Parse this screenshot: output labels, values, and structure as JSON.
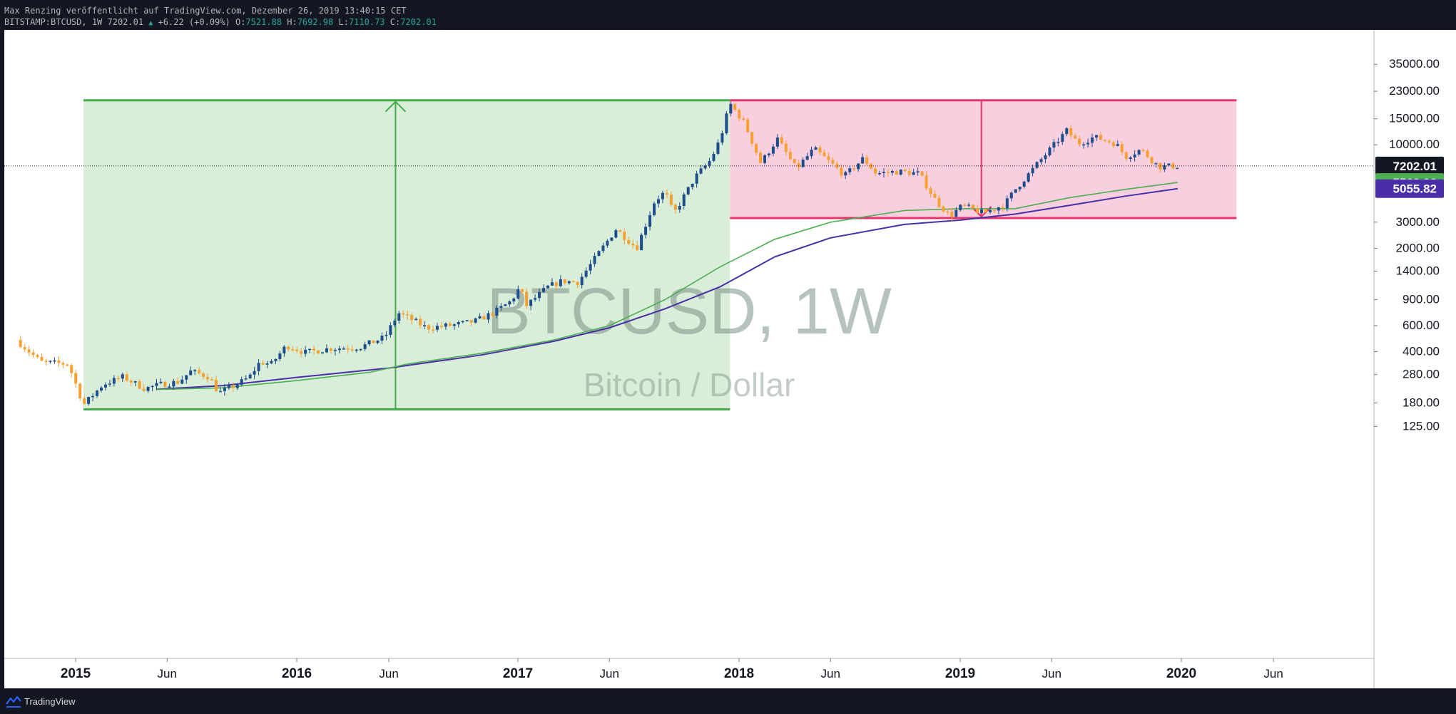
{
  "header": {
    "publisher_line": "Max Renzing veröffentlicht auf TradingView.com, Dezember 26, 2019 13:40:15 CET",
    "symbol_line": "BITSTAMP:BTCUSD, 1W 7202.01",
    "change": "+6.22 (+0.09%)",
    "o_label": "O:",
    "o_value": "7521.88",
    "h_label": "H:",
    "h_value": "7692.98",
    "l_label": "L:",
    "l_value": "7110.73",
    "c_label": "C:",
    "c_value": "7202.01"
  },
  "watermark": {
    "symbol": "BTCUSD, 1W",
    "name": "Bitcoin / Dollar"
  },
  "footer": {
    "brand": "TradingView",
    "logo_icon": "tradingview-logo-icon"
  },
  "colors": {
    "up": "#1e4d8c",
    "down": "#f5a030",
    "ma_green": "#4caf50",
    "ma_purple": "#4a2ea8",
    "range_fill": "#d9eed8",
    "range_border": "#43ab4a",
    "drop_fill": "#f8cfdf",
    "drop_border": "#e8336d"
  },
  "chart_data": {
    "type": "candlestick",
    "scale": "log",
    "ylim": [
      95,
      45000
    ],
    "y_ticks": [
      "35000.00",
      "23000.00",
      "15000.00",
      "10000.00",
      "3000.00",
      "2000.00",
      "1400.00",
      "900.00",
      "600.00",
      "400.00",
      "280.00",
      "180.00",
      "125.00"
    ],
    "y_tick_values": [
      35000,
      23000,
      15000,
      10000,
      3000,
      2000,
      1400,
      900,
      600,
      400,
      280,
      180,
      125
    ],
    "x_ticks": [
      "2015",
      "Jun",
      "2016",
      "Jun",
      "2017",
      "Jun",
      "2018",
      "Jun",
      "2019",
      "Jun",
      "2020",
      "Jun"
    ],
    "x_tick_dates": [
      "2015-01-01",
      "2015-06-01",
      "2016-01-01",
      "2016-06-01",
      "2017-01-01",
      "2017-06-01",
      "2018-01-01",
      "2018-06-01",
      "2019-01-01",
      "2019-06-01",
      "2020-01-01",
      "2020-06-01"
    ],
    "price_labels": [
      {
        "text": "7202.01",
        "value": 7202.01,
        "role": "last_price"
      },
      {
        "text": "5562.26",
        "value": 5562.26,
        "role": "ma_green"
      },
      {
        "text": "5055.82",
        "value": 5055.82,
        "role": "ma_purple"
      }
    ],
    "price_path": [
      [
        "2014-09-25",
        480
      ],
      [
        "2014-11-05",
        340
      ],
      [
        "2014-12-20",
        330
      ],
      [
        "2015-01-14",
        175
      ],
      [
        "2015-02-15",
        240
      ],
      [
        "2015-03-20",
        270
      ],
      [
        "2015-04-25",
        225
      ],
      [
        "2015-05-20",
        240
      ],
      [
        "2015-06-20",
        250
      ],
      [
        "2015-07-10",
        295
      ],
      [
        "2015-08-10",
        270
      ],
      [
        "2015-08-25",
        210
      ],
      [
        "2015-09-20",
        235
      ],
      [
        "2015-10-15",
        270
      ],
      [
        "2015-11-01",
        340
      ],
      [
        "2015-11-20",
        330
      ],
      [
        "2015-12-15",
        440
      ],
      [
        "2016-01-15",
        395
      ],
      [
        "2016-02-25",
        420
      ],
      [
        "2016-04-15",
        430
      ],
      [
        "2016-05-25",
        500
      ],
      [
        "2016-06-17",
        730
      ],
      [
        "2016-07-10",
        655
      ],
      [
        "2016-08-02",
        580
      ],
      [
        "2016-09-15",
        605
      ],
      [
        "2016-10-20",
        640
      ],
      [
        "2016-11-20",
        730
      ],
      [
        "2016-12-20",
        880
      ],
      [
        "2017-01-04",
        1090
      ],
      [
        "2017-01-15",
        820
      ],
      [
        "2017-02-20",
        1100
      ],
      [
        "2017-03-15",
        1200
      ],
      [
        "2017-04-10",
        1180
      ],
      [
        "2017-05-10",
        1750
      ],
      [
        "2017-06-12",
        2700
      ],
      [
        "2017-07-16",
        2000
      ],
      [
        "2017-08-15",
        4200
      ],
      [
        "2017-09-01",
        4800
      ],
      [
        "2017-09-15",
        3400
      ],
      [
        "2017-10-20",
        6000
      ],
      [
        "2017-11-15",
        7900
      ],
      [
        "2017-12-01",
        11000
      ],
      [
        "2017-12-17",
        19000
      ],
      [
        "2018-01-10",
        14000
      ],
      [
        "2018-02-06",
        7500
      ],
      [
        "2018-03-05",
        11000
      ],
      [
        "2018-04-05",
        6900
      ],
      [
        "2018-05-05",
        9400
      ],
      [
        "2018-06-25",
        6200
      ],
      [
        "2018-07-25",
        8100
      ],
      [
        "2018-08-15",
        6400
      ],
      [
        "2018-09-20",
        6600
      ],
      [
        "2018-10-25",
        6400
      ],
      [
        "2018-11-20",
        4300
      ],
      [
        "2018-12-15",
        3300
      ],
      [
        "2019-01-05",
        3900
      ],
      [
        "2019-02-08",
        3450
      ],
      [
        "2019-03-15",
        3950
      ],
      [
        "2019-04-02",
        5000
      ],
      [
        "2019-05-15",
        8000
      ],
      [
        "2019-06-26",
        12500
      ],
      [
        "2019-07-15",
        10200
      ],
      [
        "2019-08-10",
        11300
      ],
      [
        "2019-09-15",
        10200
      ],
      [
        "2019-10-01",
        8300
      ],
      [
        "2019-10-26",
        9300
      ],
      [
        "2019-11-25",
        7100
      ],
      [
        "2019-12-26",
        7202
      ]
    ],
    "ma_green_path": [
      [
        "2015-05-15",
        222
      ],
      [
        "2015-09-01",
        228
      ],
      [
        "2016-01-01",
        255
      ],
      [
        "2016-05-01",
        290
      ],
      [
        "2016-07-01",
        330
      ],
      [
        "2016-11-01",
        390
      ],
      [
        "2017-03-01",
        480
      ],
      [
        "2017-06-01",
        600
      ],
      [
        "2017-09-01",
        900
      ],
      [
        "2017-12-01",
        1500
      ],
      [
        "2018-03-01",
        2300
      ],
      [
        "2018-06-01",
        3000
      ],
      [
        "2018-10-01",
        3600
      ],
      [
        "2019-01-01",
        3700
      ],
      [
        "2019-04-01",
        3700
      ],
      [
        "2019-07-01",
        4400
      ],
      [
        "2019-10-01",
        5000
      ],
      [
        "2019-12-26",
        5562.26
      ]
    ],
    "ma_purple_path": [
      [
        "2015-05-15",
        223
      ],
      [
        "2015-09-01",
        236
      ],
      [
        "2016-01-01",
        268
      ],
      [
        "2016-06-01",
        310
      ],
      [
        "2016-11-01",
        380
      ],
      [
        "2017-03-01",
        470
      ],
      [
        "2017-06-01",
        580
      ],
      [
        "2017-09-01",
        780
      ],
      [
        "2017-12-01",
        1100
      ],
      [
        "2018-03-01",
        1750
      ],
      [
        "2018-06-01",
        2350
      ],
      [
        "2018-10-01",
        2900
      ],
      [
        "2019-01-01",
        3100
      ],
      [
        "2019-04-01",
        3400
      ],
      [
        "2019-07-01",
        3900
      ],
      [
        "2019-10-01",
        4500
      ],
      [
        "2019-12-26",
        5055.82
      ]
    ],
    "annotations": [
      {
        "type": "price_range",
        "fill": "#d9eed8",
        "border": "#43ab4a",
        "x0": "2015-01-14",
        "x1": "2017-12-17",
        "y_low": 163,
        "y_high": 20000,
        "arrow_x": "2016-06-12",
        "direction": "up"
      },
      {
        "type": "price_range",
        "fill": "#f8cfdf",
        "border": "#e8336d",
        "x0": "2017-12-17",
        "x1": "2020-04-01",
        "y_low": 3200,
        "y_high": 20000,
        "arrow_x": "2019-02-05",
        "direction": "down"
      }
    ],
    "last_price_line": 7202.01
  }
}
